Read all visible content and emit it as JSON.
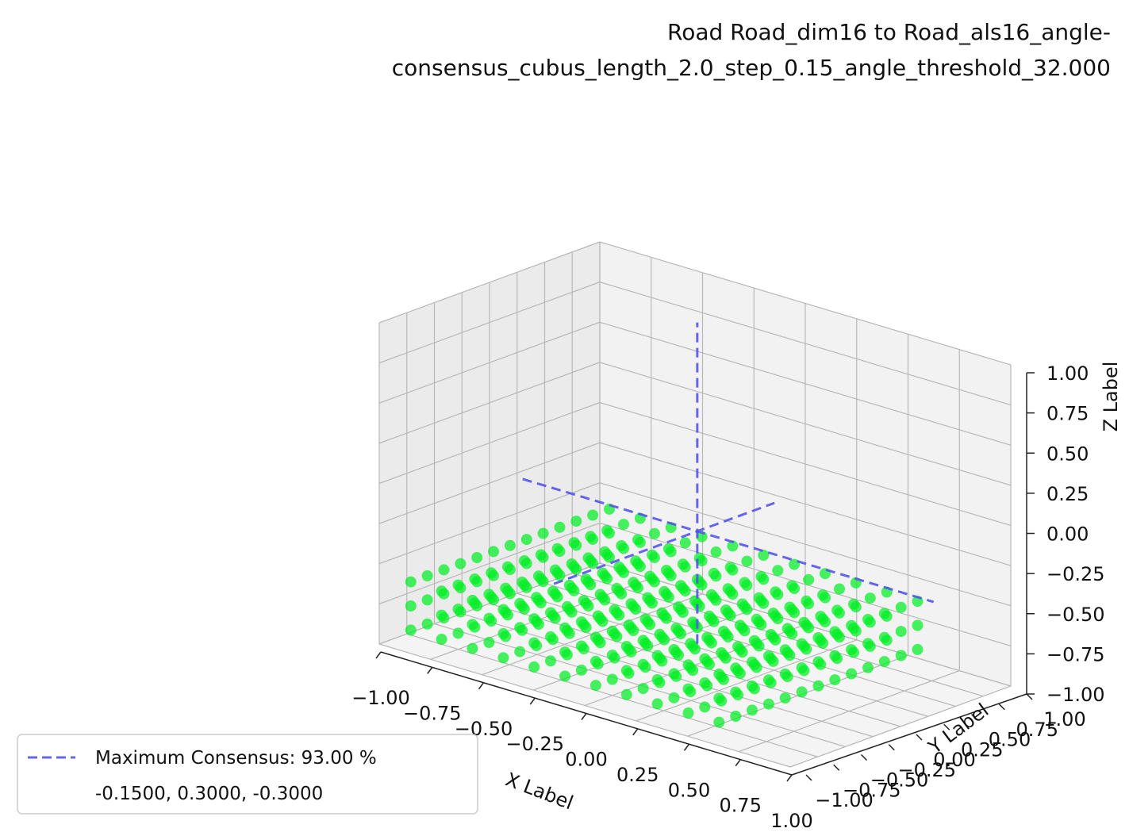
{
  "chart_data": {
    "type": "scatter",
    "projection": "3d",
    "title_line1": "Road Road_dim16 to Road_als16_angle-",
    "title_line2": "consensus_cubus_length_2.0_step_0.15_angle_threshold_32.000",
    "xlabel": "X Label",
    "ylabel": "Y Label",
    "zlabel": "Z Label",
    "xlim": [
      -1.0,
      1.0
    ],
    "ylim": [
      -1.0,
      1.0
    ],
    "zlim": [
      -1.0,
      1.0
    ],
    "x_ticks": [
      "−1.00",
      "−0.75",
      "−0.50",
      "−0.25",
      "0.00",
      "0.25",
      "0.50",
      "0.75",
      "1.00"
    ],
    "y_ticks": [
      "−1.00",
      "−0.75",
      "−0.50",
      "−0.25",
      "0.00",
      "0.25",
      "0.50",
      "0.75",
      "1.00"
    ],
    "z_ticks": [
      "−1.00",
      "−0.75",
      "−0.50",
      "−0.25",
      "0.00",
      "0.25",
      "0.50",
      "0.75",
      "1.00"
    ],
    "grid": true,
    "point_color": "#00ee22",
    "line_color": "#5555ee",
    "points": {
      "x_from": -0.9,
      "x_to": 0.6,
      "x_step": 0.15,
      "y_from": -0.9,
      "y_to": 0.9,
      "y_step": 0.15,
      "z_from": -0.9,
      "z_to": -0.6,
      "z_step": 0.15,
      "description_values": "regular grid"
    },
    "max_consensus_point": [
      -0.15,
      0.3,
      -0.3
    ],
    "legend": {
      "position": "lower-left",
      "entry_label": "Maximum Consensus: 93.00 %",
      "entry_sub": "-0.1500, 0.3000, -0.3000"
    }
  }
}
